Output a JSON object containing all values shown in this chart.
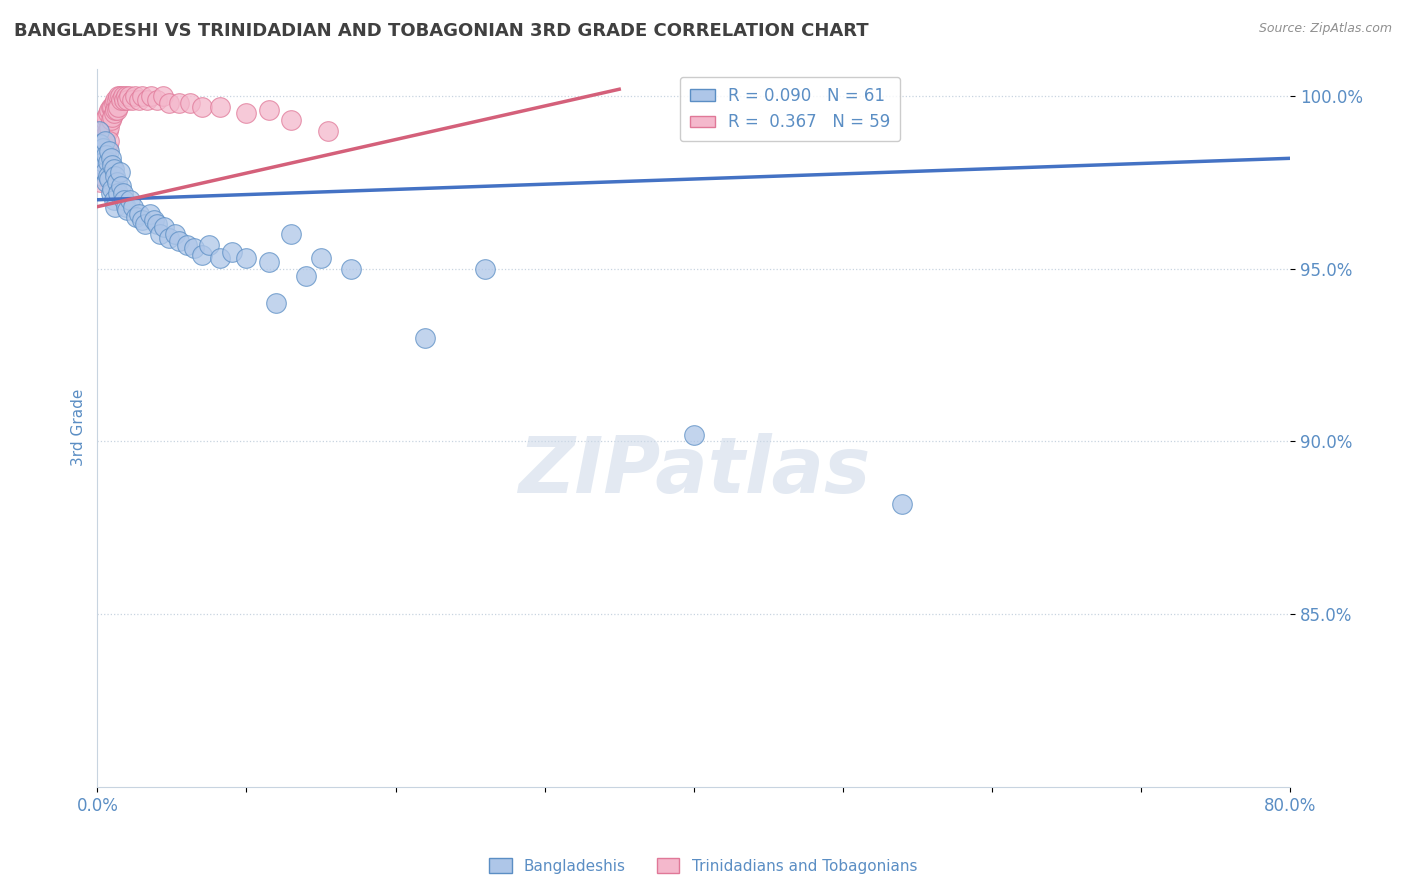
{
  "title": "BANGLADESHI VS TRINIDADIAN AND TOBAGONIAN 3RD GRADE CORRELATION CHART",
  "source": "Source: ZipAtlas.com",
  "ylabel": "3rd Grade",
  "blue_R": 0.09,
  "blue_N": 61,
  "pink_R": 0.367,
  "pink_N": 59,
  "blue_color": "#aec6e8",
  "pink_color": "#f4b8cc",
  "blue_edge_color": "#5b8ec4",
  "pink_edge_color": "#e07898",
  "blue_line_color": "#4472c4",
  "pink_line_color": "#d4607a",
  "title_color": "#404040",
  "axis_color": "#5b8ec4",
  "background_color": "#ffffff",
  "grid_color": "#c8d4e0",
  "xlim": [
    0.0,
    0.8
  ],
  "ylim": [
    0.8,
    1.008
  ],
  "ytick_values": [
    1.0,
    0.95,
    0.9,
    0.85
  ],
  "blue_line_x": [
    0.0,
    0.8
  ],
  "blue_line_y": [
    0.97,
    0.982
  ],
  "pink_line_x": [
    0.0,
    0.35
  ],
  "pink_line_y": [
    0.968,
    1.002
  ],
  "blue_points_x": [
    0.001,
    0.002,
    0.003,
    0.003,
    0.004,
    0.004,
    0.005,
    0.005,
    0.006,
    0.006,
    0.007,
    0.007,
    0.008,
    0.008,
    0.009,
    0.009,
    0.01,
    0.01,
    0.011,
    0.011,
    0.012,
    0.012,
    0.013,
    0.014,
    0.015,
    0.016,
    0.017,
    0.018,
    0.019,
    0.02,
    0.022,
    0.024,
    0.026,
    0.028,
    0.03,
    0.032,
    0.035,
    0.038,
    0.04,
    0.042,
    0.045,
    0.048,
    0.052,
    0.055,
    0.06,
    0.065,
    0.07,
    0.075,
    0.082,
    0.09,
    0.1,
    0.115,
    0.13,
    0.15,
    0.17,
    0.26,
    0.12,
    0.14,
    0.22,
    0.4,
    0.54
  ],
  "blue_points_y": [
    0.99,
    0.986,
    0.983,
    0.979,
    0.985,
    0.981,
    0.987,
    0.978,
    0.983,
    0.975,
    0.981,
    0.977,
    0.984,
    0.976,
    0.982,
    0.972,
    0.98,
    0.973,
    0.979,
    0.97,
    0.977,
    0.968,
    0.975,
    0.972,
    0.978,
    0.974,
    0.972,
    0.97,
    0.968,
    0.967,
    0.97,
    0.968,
    0.965,
    0.966,
    0.964,
    0.963,
    0.966,
    0.964,
    0.963,
    0.96,
    0.962,
    0.959,
    0.96,
    0.958,
    0.957,
    0.956,
    0.954,
    0.957,
    0.953,
    0.955,
    0.953,
    0.952,
    0.96,
    0.953,
    0.95,
    0.95,
    0.94,
    0.948,
    0.93,
    0.902,
    0.882
  ],
  "pink_points_x": [
    0.001,
    0.001,
    0.002,
    0.002,
    0.002,
    0.003,
    0.003,
    0.003,
    0.004,
    0.004,
    0.004,
    0.005,
    0.005,
    0.005,
    0.006,
    0.006,
    0.006,
    0.007,
    0.007,
    0.007,
    0.008,
    0.008,
    0.008,
    0.009,
    0.009,
    0.01,
    0.01,
    0.011,
    0.011,
    0.012,
    0.012,
    0.013,
    0.013,
    0.014,
    0.014,
    0.015,
    0.016,
    0.017,
    0.018,
    0.019,
    0.02,
    0.021,
    0.023,
    0.025,
    0.028,
    0.03,
    0.033,
    0.036,
    0.04,
    0.044,
    0.048,
    0.055,
    0.062,
    0.07,
    0.082,
    0.1,
    0.115,
    0.13,
    0.155
  ],
  "pink_points_y": [
    0.985,
    0.979,
    0.988,
    0.981,
    0.975,
    0.99,
    0.984,
    0.977,
    0.992,
    0.986,
    0.98,
    0.993,
    0.987,
    0.982,
    0.994,
    0.989,
    0.984,
    0.995,
    0.99,
    0.985,
    0.996,
    0.991,
    0.987,
    0.997,
    0.993,
    0.997,
    0.994,
    0.998,
    0.995,
    0.999,
    0.996,
    0.999,
    0.996,
    1.0,
    0.997,
    1.0,
    0.999,
    1.0,
    0.999,
    1.0,
    0.999,
    1.0,
    0.999,
    1.0,
    0.999,
    1.0,
    0.999,
    1.0,
    0.999,
    1.0,
    0.998,
    0.998,
    0.998,
    0.997,
    0.997,
    0.995,
    0.996,
    0.993,
    0.99
  ]
}
